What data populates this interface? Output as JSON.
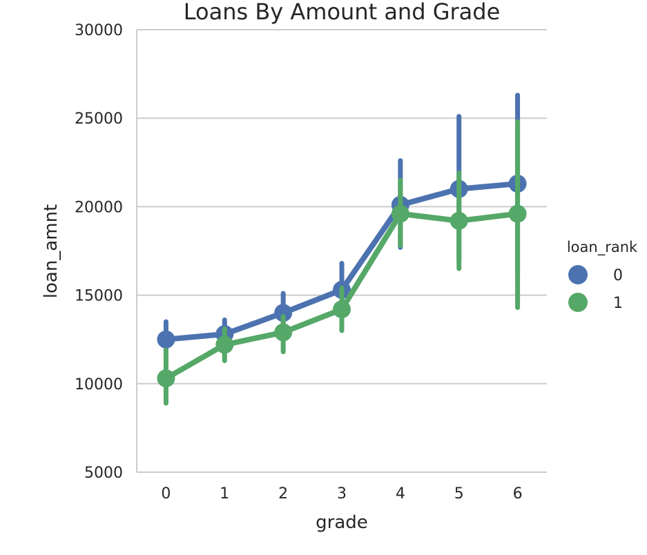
{
  "chart_data": {
    "type": "line",
    "title": "Loans By Amount and Grade",
    "xlabel": "grade",
    "ylabel": "loan_amnt",
    "categories": [
      "0",
      "1",
      "2",
      "3",
      "4",
      "5",
      "6"
    ],
    "ylim": [
      5000,
      30000
    ],
    "yticks": [
      5000,
      10000,
      15000,
      20000,
      25000,
      30000
    ],
    "grid": "horizontal",
    "legend": {
      "title": "loan_rank",
      "placement": "right"
    },
    "series": [
      {
        "name": "0",
        "color": "#4c72b0",
        "values": [
          12500,
          12800,
          14000,
          15300,
          20100,
          21000,
          21300
        ],
        "ci_low": [
          11700,
          12100,
          13100,
          14100,
          17700,
          16900,
          16200
        ],
        "ci_high": [
          13500,
          13600,
          15100,
          16800,
          22600,
          25100,
          26300
        ]
      },
      {
        "name": "1",
        "color": "#55a868",
        "values": [
          10300,
          12200,
          12900,
          14200,
          19600,
          19200,
          19600
        ],
        "ci_low": [
          8900,
          11300,
          11800,
          13000,
          17800,
          16500,
          14300
        ],
        "ci_high": [
          11900,
          13100,
          13800,
          15400,
          21500,
          21900,
          24800
        ]
      }
    ]
  }
}
